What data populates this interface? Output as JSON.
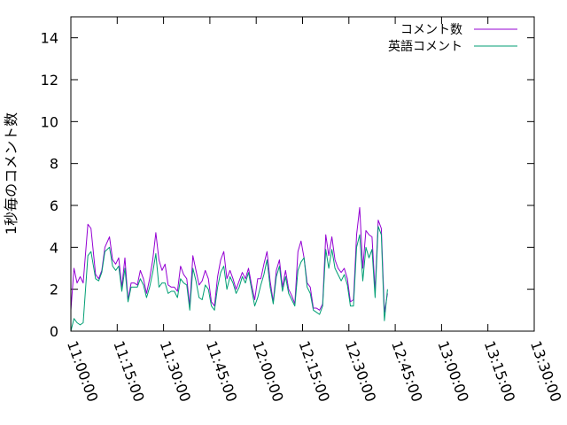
{
  "chart_data": {
    "type": "line",
    "title": "",
    "xlabel": "",
    "ylabel": "1秒毎のコメント数",
    "xlim": [
      "11:00:00",
      "13:30:00"
    ],
    "ylim": [
      0,
      15
    ],
    "y_ticks": [
      0,
      2,
      4,
      6,
      8,
      10,
      12,
      14
    ],
    "x_ticks": [
      "11:00:00",
      "11:15:00",
      "11:30:00",
      "11:45:00",
      "12:00:00",
      "12:15:00",
      "12:30:00",
      "12:45:00",
      "13:00:00",
      "13:15:00",
      "13:30:00"
    ],
    "grid": false,
    "legend_position": "top-right",
    "series": [
      {
        "name": "コメント数",
        "color": "#9400d3",
        "points": [
          [
            "11:00:00",
            1.0
          ],
          [
            "11:01:00",
            3.0
          ],
          [
            "11:02:00",
            2.3
          ],
          [
            "11:03:00",
            2.6
          ],
          [
            "11:04:00",
            2.3
          ],
          [
            "11:05:30",
            5.1
          ],
          [
            "11:06:30",
            4.9
          ],
          [
            "11:08:00",
            2.7
          ],
          [
            "11:09:00",
            2.5
          ],
          [
            "11:10:00",
            2.9
          ],
          [
            "11:11:00",
            4.0
          ],
          [
            "11:12:30",
            4.5
          ],
          [
            "11:13:30",
            3.4
          ],
          [
            "11:14:30",
            3.2
          ],
          [
            "11:15:30",
            3.5
          ],
          [
            "11:16:30",
            2.1
          ],
          [
            "11:17:30",
            3.5
          ],
          [
            "11:18:30",
            1.5
          ],
          [
            "11:19:30",
            2.3
          ],
          [
            "11:20:30",
            2.3
          ],
          [
            "11:21:30",
            2.2
          ],
          [
            "11:22:30",
            2.9
          ],
          [
            "11:23:30",
            2.5
          ],
          [
            "11:24:30",
            1.8
          ],
          [
            "11:25:30",
            2.5
          ],
          [
            "11:26:30",
            3.4
          ],
          [
            "11:27:30",
            4.7
          ],
          [
            "11:28:30",
            3.4
          ],
          [
            "11:29:30",
            2.9
          ],
          [
            "11:30:30",
            3.2
          ],
          [
            "11:31:30",
            2.2
          ],
          [
            "11:32:30",
            2.1
          ],
          [
            "11:33:30",
            2.1
          ],
          [
            "11:34:30",
            1.9
          ],
          [
            "11:35:30",
            3.1
          ],
          [
            "11:36:30",
            2.7
          ],
          [
            "11:37:30",
            2.5
          ],
          [
            "11:38:30",
            1.2
          ],
          [
            "11:39:30",
            3.6
          ],
          [
            "11:40:30",
            2.9
          ],
          [
            "11:41:30",
            2.2
          ],
          [
            "11:42:30",
            2.4
          ],
          [
            "11:43:30",
            2.9
          ],
          [
            "11:44:30",
            2.5
          ],
          [
            "11:45:30",
            1.4
          ],
          [
            "11:46:30",
            1.2
          ],
          [
            "11:47:30",
            2.6
          ],
          [
            "11:48:30",
            3.4
          ],
          [
            "11:49:30",
            3.8
          ],
          [
            "11:50:30",
            2.5
          ],
          [
            "11:51:30",
            2.9
          ],
          [
            "11:52:30",
            2.5
          ],
          [
            "11:53:30",
            2.0
          ],
          [
            "11:54:30",
            2.4
          ],
          [
            "11:55:30",
            2.8
          ],
          [
            "11:56:30",
            2.5
          ],
          [
            "11:57:30",
            3.0
          ],
          [
            "11:58:30",
            2.2
          ],
          [
            "11:59:30",
            1.5
          ],
          [
            "12:00:30",
            2.5
          ],
          [
            "12:01:30",
            2.5
          ],
          [
            "12:02:30",
            3.2
          ],
          [
            "12:03:30",
            3.8
          ],
          [
            "12:04:30",
            2.4
          ],
          [
            "12:05:30",
            1.4
          ],
          [
            "12:06:30",
            2.9
          ],
          [
            "12:07:30",
            3.4
          ],
          [
            "12:08:30",
            2.1
          ],
          [
            "12:09:30",
            2.9
          ],
          [
            "12:10:30",
            2.0
          ],
          [
            "12:11:30",
            1.7
          ],
          [
            "12:12:30",
            1.3
          ],
          [
            "12:13:30",
            3.8
          ],
          [
            "12:14:30",
            4.3
          ],
          [
            "12:15:30",
            3.5
          ],
          [
            "12:16:30",
            2.3
          ],
          [
            "12:17:30",
            2.1
          ],
          [
            "12:18:30",
            1.1
          ],
          [
            "12:19:30",
            1.1
          ],
          [
            "12:20:30",
            1.0
          ],
          [
            "12:21:30",
            1.3
          ],
          [
            "12:22:30",
            4.6
          ],
          [
            "12:23:30",
            3.6
          ],
          [
            "12:24:30",
            4.5
          ],
          [
            "12:25:30",
            3.4
          ],
          [
            "12:26:30",
            3.0
          ],
          [
            "12:27:30",
            2.8
          ],
          [
            "12:28:30",
            3.0
          ],
          [
            "12:29:30",
            2.5
          ],
          [
            "12:30:30",
            1.4
          ],
          [
            "12:31:30",
            1.5
          ],
          [
            "12:32:30",
            4.6
          ],
          [
            "12:33:30",
            5.9
          ],
          [
            "12:34:30",
            3.0
          ],
          [
            "12:35:30",
            4.8
          ],
          [
            "12:36:30",
            4.6
          ],
          [
            "12:37:30",
            4.5
          ],
          [
            "12:38:30",
            1.9
          ],
          [
            "12:39:30",
            5.3
          ],
          [
            "12:40:30",
            4.9
          ],
          [
            "12:41:30",
            0.9
          ],
          [
            "12:42:30",
            1.8
          ]
        ]
      },
      {
        "name": "英語コメント",
        "color": "#009e73",
        "points": [
          [
            "11:00:00",
            0.0
          ],
          [
            "11:01:00",
            0.6
          ],
          [
            "11:02:00",
            0.4
          ],
          [
            "11:03:00",
            0.3
          ],
          [
            "11:04:00",
            0.4
          ],
          [
            "11:05:30",
            3.6
          ],
          [
            "11:06:30",
            3.8
          ],
          [
            "11:08:00",
            2.5
          ],
          [
            "11:09:00",
            2.4
          ],
          [
            "11:10:00",
            2.8
          ],
          [
            "11:11:00",
            3.8
          ],
          [
            "11:12:30",
            4.0
          ],
          [
            "11:13:30",
            3.1
          ],
          [
            "11:14:30",
            2.9
          ],
          [
            "11:15:30",
            3.1
          ],
          [
            "11:16:30",
            1.9
          ],
          [
            "11:17:30",
            3.0
          ],
          [
            "11:18:30",
            1.4
          ],
          [
            "11:19:30",
            2.1
          ],
          [
            "11:20:30",
            2.1
          ],
          [
            "11:21:30",
            2.1
          ],
          [
            "11:22:30",
            2.5
          ],
          [
            "11:23:30",
            2.2
          ],
          [
            "11:24:30",
            1.6
          ],
          [
            "11:25:30",
            2.1
          ],
          [
            "11:26:30",
            2.8
          ],
          [
            "11:27:30",
            3.7
          ],
          [
            "11:28:30",
            2.1
          ],
          [
            "11:29:30",
            2.3
          ],
          [
            "11:30:30",
            2.3
          ],
          [
            "11:31:30",
            1.8
          ],
          [
            "11:32:30",
            1.9
          ],
          [
            "11:33:30",
            1.9
          ],
          [
            "11:34:30",
            1.6
          ],
          [
            "11:35:30",
            2.5
          ],
          [
            "11:36:30",
            2.3
          ],
          [
            "11:37:30",
            2.2
          ],
          [
            "11:38:30",
            1.0
          ],
          [
            "11:39:30",
            3.0
          ],
          [
            "11:40:30",
            2.4
          ],
          [
            "11:41:30",
            1.6
          ],
          [
            "11:42:30",
            1.5
          ],
          [
            "11:43:30",
            2.2
          ],
          [
            "11:44:30",
            2.0
          ],
          [
            "11:45:30",
            1.2
          ],
          [
            "11:46:30",
            1.0
          ],
          [
            "11:47:30",
            2.1
          ],
          [
            "11:48:30",
            2.8
          ],
          [
            "11:49:30",
            3.1
          ],
          [
            "11:50:30",
            2.0
          ],
          [
            "11:51:30",
            2.6
          ],
          [
            "11:52:30",
            2.3
          ],
          [
            "11:53:30",
            1.8
          ],
          [
            "11:54:30",
            2.1
          ],
          [
            "11:55:30",
            2.6
          ],
          [
            "11:56:30",
            2.3
          ],
          [
            "11:57:30",
            2.8
          ],
          [
            "11:58:30",
            2.0
          ],
          [
            "11:59:30",
            1.2
          ],
          [
            "12:00:30",
            1.6
          ],
          [
            "12:01:30",
            2.2
          ],
          [
            "12:02:30",
            2.7
          ],
          [
            "12:03:30",
            3.4
          ],
          [
            "12:04:30",
            2.1
          ],
          [
            "12:05:30",
            1.3
          ],
          [
            "12:06:30",
            2.6
          ],
          [
            "12:07:30",
            3.1
          ],
          [
            "12:08:30",
            1.9
          ],
          [
            "12:09:30",
            2.6
          ],
          [
            "12:10:30",
            1.8
          ],
          [
            "12:11:30",
            1.5
          ],
          [
            "12:12:30",
            1.2
          ],
          [
            "12:13:30",
            2.9
          ],
          [
            "12:14:30",
            3.3
          ],
          [
            "12:15:30",
            3.5
          ],
          [
            "12:16:30",
            2.1
          ],
          [
            "12:17:30",
            1.8
          ],
          [
            "12:18:30",
            1.0
          ],
          [
            "12:19:30",
            0.9
          ],
          [
            "12:20:30",
            0.8
          ],
          [
            "12:21:30",
            1.2
          ],
          [
            "12:22:30",
            3.9
          ],
          [
            "12:23:30",
            3.0
          ],
          [
            "12:24:30",
            3.9
          ],
          [
            "12:25:30",
            3.0
          ],
          [
            "12:26:30",
            2.7
          ],
          [
            "12:27:30",
            2.4
          ],
          [
            "12:28:30",
            2.7
          ],
          [
            "12:29:30",
            2.2
          ],
          [
            "12:30:30",
            1.2
          ],
          [
            "12:31:30",
            1.2
          ],
          [
            "12:32:30",
            4.0
          ],
          [
            "12:33:30",
            4.6
          ],
          [
            "12:34:30",
            2.4
          ],
          [
            "12:35:30",
            4.0
          ],
          [
            "12:36:30",
            3.5
          ],
          [
            "12:37:30",
            3.9
          ],
          [
            "12:38:30",
            1.6
          ],
          [
            "12:39:30",
            5.0
          ],
          [
            "12:40:30",
            4.6
          ],
          [
            "12:41:30",
            0.5
          ],
          [
            "12:42:30",
            2.0
          ]
        ]
      }
    ]
  }
}
